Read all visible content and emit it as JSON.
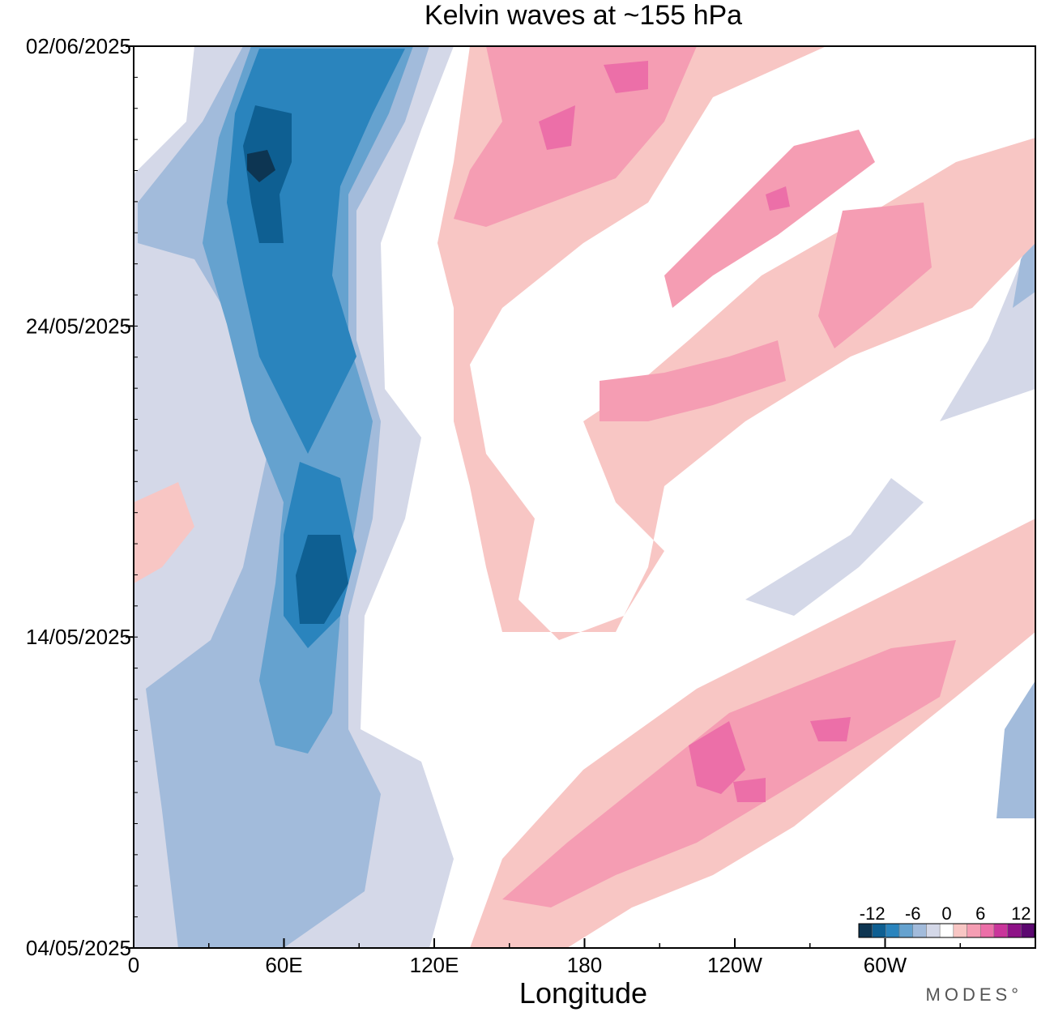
{
  "chart_data": {
    "type": "heatmap",
    "title": "Kelvin waves at ~155 hPa",
    "xlabel": "Longitude",
    "ylabel": "",
    "x_range": [
      0,
      360
    ],
    "x_ticks": [
      {
        "lon": 0,
        "label": "0"
      },
      {
        "lon": 60,
        "label": "60E"
      },
      {
        "lon": 120,
        "label": "120E"
      },
      {
        "lon": 180,
        "label": "180"
      },
      {
        "lon": 240,
        "label": "120W"
      },
      {
        "lon": 300,
        "label": "60W"
      }
    ],
    "y_range": [
      "04/05/2025",
      "02/06/2025"
    ],
    "y_ticks": [
      "04/05/2025",
      "14/05/2025",
      "24/05/2025",
      "02/06/2025"
    ],
    "colorbar": {
      "levels": [
        -14,
        -12,
        -10,
        -8,
        -6,
        -4,
        -2,
        2,
        4,
        6,
        8,
        10,
        12,
        14
      ],
      "tick_labels": [
        "-12",
        "-6",
        "0",
        "6",
        "12"
      ],
      "colors": [
        "#0d3552",
        "#0e5f92",
        "#2a84bd",
        "#65a2cf",
        "#a2bbdb",
        "#d4d8e8",
        "#ffffff",
        "#f8c6c4",
        "#f59db3",
        "#ec6fa8",
        "#c9359b",
        "#8e1287",
        "#5c0870"
      ]
    },
    "regions": [
      {
        "sign": "negative",
        "level": 2,
        "lon": [
          50,
          100
        ],
        "date": [
          "24/05/2025",
          "02/06/2025"
        ],
        "peak": "approx -14 near 50E, 29/05/2025"
      },
      {
        "sign": "negative",
        "level": 2,
        "lon": [
          60,
          85
        ],
        "date": [
          "10/05/2025",
          "24/05/2025"
        ],
        "peak": "approx -12 near 75E, 16/05/2025"
      },
      {
        "sign": "positive",
        "level": 3,
        "lon": [
          140,
          220
        ],
        "date": [
          "26/05/2025",
          "02/06/2025"
        ],
        "peak": "approx 8 near 190E"
      },
      {
        "sign": "positive",
        "level": 2,
        "lon": [
          200,
          330
        ],
        "date": [
          "20/05/2025",
          "30/05/2025"
        ],
        "peak": "approx 8 near 260E"
      },
      {
        "sign": "positive",
        "level": 3,
        "lon": [
          220,
          300
        ],
        "date": [
          "06/05/2025",
          "12/05/2025"
        ],
        "peak": "approx 8 near 225E, 08/05/2025"
      },
      {
        "sign": "negative",
        "level": 1,
        "lon": [
          340,
          360
        ],
        "date": [
          "24/05/2025",
          "28/05/2025"
        ],
        "peak": "approx -8"
      }
    ]
  },
  "branding": {
    "logo_text": "MODES°"
  }
}
